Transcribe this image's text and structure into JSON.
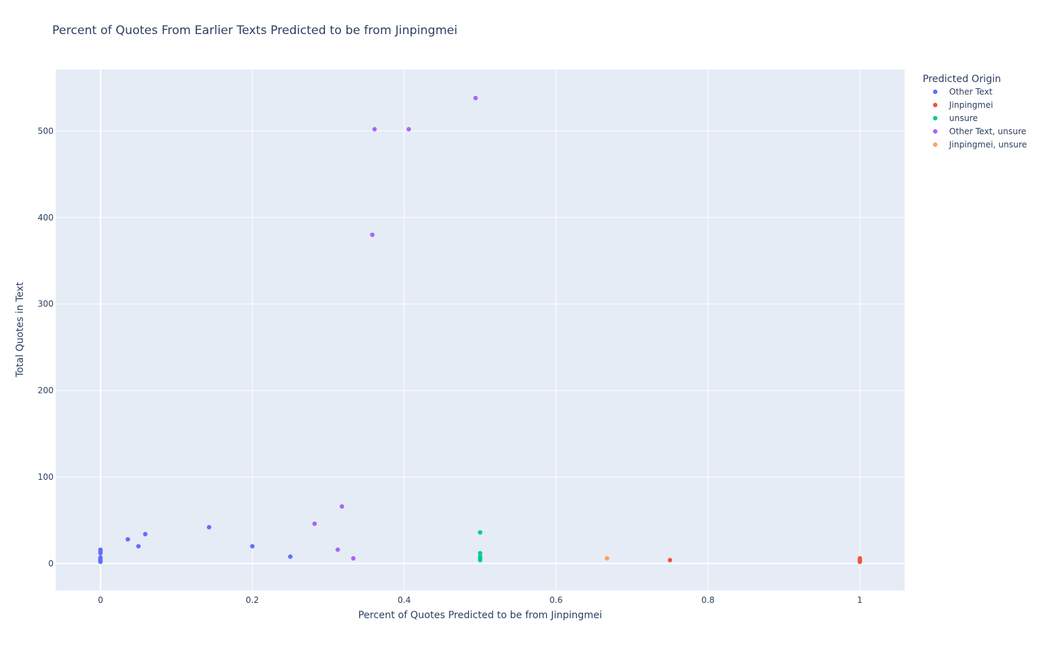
{
  "chart_data": {
    "type": "scatter",
    "title": "Percent of Quotes From Earlier Texts Predicted to be from Jinpingmei",
    "xlabel": "Percent of Quotes Predicted to be from Jinpingmei",
    "ylabel": "Total Quotes in Text",
    "xlim": [
      -0.059,
      1.059
    ],
    "ylim": [
      -31,
      571
    ],
    "x_ticks": [
      0,
      0.2,
      0.4,
      0.6,
      0.8,
      1
    ],
    "x_tick_labels": [
      "0",
      "0.2",
      "0.4",
      "0.6",
      "0.8",
      "1"
    ],
    "y_ticks": [
      0,
      100,
      200,
      300,
      400,
      500
    ],
    "y_tick_labels": [
      "0",
      "100",
      "200",
      "300",
      "400",
      "500"
    ],
    "grid": true,
    "legend_title": "Predicted Origin",
    "legend_position": "right",
    "series": [
      {
        "name": "Other Text",
        "color": "#636efa",
        "points": [
          {
            "x": 0,
            "y": 2
          },
          {
            "x": 0,
            "y": 3
          },
          {
            "x": 0,
            "y": 4
          },
          {
            "x": 0,
            "y": 5
          },
          {
            "x": 0,
            "y": 6
          },
          {
            "x": 0,
            "y": 7
          },
          {
            "x": 0,
            "y": 12
          },
          {
            "x": 0,
            "y": 14
          },
          {
            "x": 0,
            "y": 16
          },
          {
            "x": 0.036,
            "y": 28
          },
          {
            "x": 0.05,
            "y": 20
          },
          {
            "x": 0.059,
            "y": 34
          },
          {
            "x": 0.143,
            "y": 42
          },
          {
            "x": 0.2,
            "y": 20
          },
          {
            "x": 0.25,
            "y": 8
          }
        ]
      },
      {
        "name": "Jinpingmei",
        "color": "#ef553b",
        "points": [
          {
            "x": 0.75,
            "y": 4
          },
          {
            "x": 1,
            "y": 2
          },
          {
            "x": 1,
            "y": 3
          },
          {
            "x": 1,
            "y": 4
          },
          {
            "x": 1,
            "y": 6
          }
        ]
      },
      {
        "name": "unsure",
        "color": "#00cc96",
        "points": [
          {
            "x": 0.5,
            "y": 4
          },
          {
            "x": 0.5,
            "y": 6
          },
          {
            "x": 0.5,
            "y": 8
          },
          {
            "x": 0.5,
            "y": 12
          },
          {
            "x": 0.5,
            "y": 36
          }
        ]
      },
      {
        "name": "Other Text, unsure",
        "color": "#ab63fa",
        "points": [
          {
            "x": 0.282,
            "y": 46
          },
          {
            "x": 0.3125,
            "y": 16
          },
          {
            "x": 0.318,
            "y": 66
          },
          {
            "x": 0.333,
            "y": 6
          },
          {
            "x": 0.358,
            "y": 380
          },
          {
            "x": 0.361,
            "y": 502
          },
          {
            "x": 0.406,
            "y": 502
          },
          {
            "x": 0.494,
            "y": 538
          }
        ]
      },
      {
        "name": "Jinpingmei, unsure",
        "color": "#ffa15a",
        "points": [
          {
            "x": 0.667,
            "y": 6
          }
        ]
      }
    ]
  }
}
